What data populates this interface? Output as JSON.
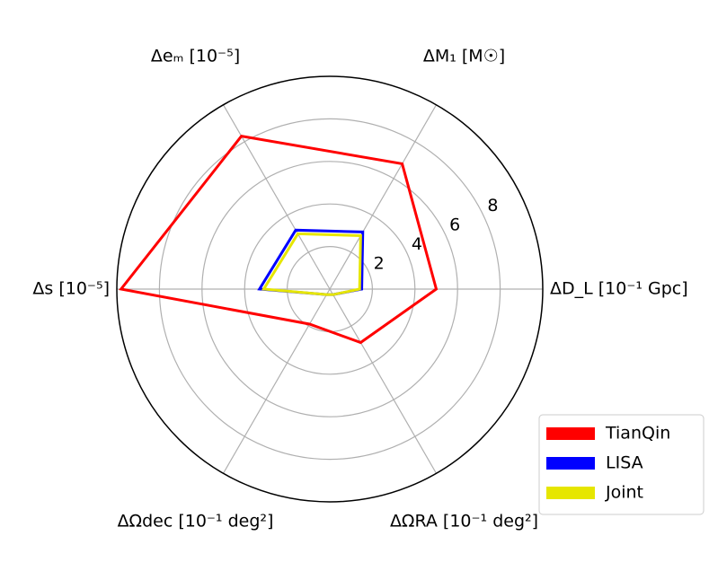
{
  "chart_data": {
    "type": "radar",
    "axes": [
      "ΔD_L [10⁻¹ Gpc]",
      "ΔM₁ [M☉]",
      "Δeₘ [10⁻⁵]",
      "Δs [10⁻⁵]",
      "ΔΩdec [10⁻¹ deg²]",
      "ΔΩRA [10⁻¹ deg²]"
    ],
    "series": [
      {
        "name": "TianQin",
        "color": "#ff0000",
        "values": [
          5.0,
          6.8,
          8.3,
          9.8,
          1.9,
          2.9
        ]
      },
      {
        "name": "LISA",
        "color": "#0000ff",
        "values": [
          1.5,
          3.1,
          3.2,
          3.3,
          0.3,
          0.3
        ]
      },
      {
        "name": "Joint",
        "color": "#e6e600",
        "values": [
          1.4,
          2.9,
          3.0,
          3.1,
          0.3,
          0.3
        ]
      }
    ],
    "rlim": [
      0,
      10
    ],
    "rticks": [
      2,
      4,
      6,
      8
    ],
    "grid": true,
    "legend": "lower right"
  }
}
